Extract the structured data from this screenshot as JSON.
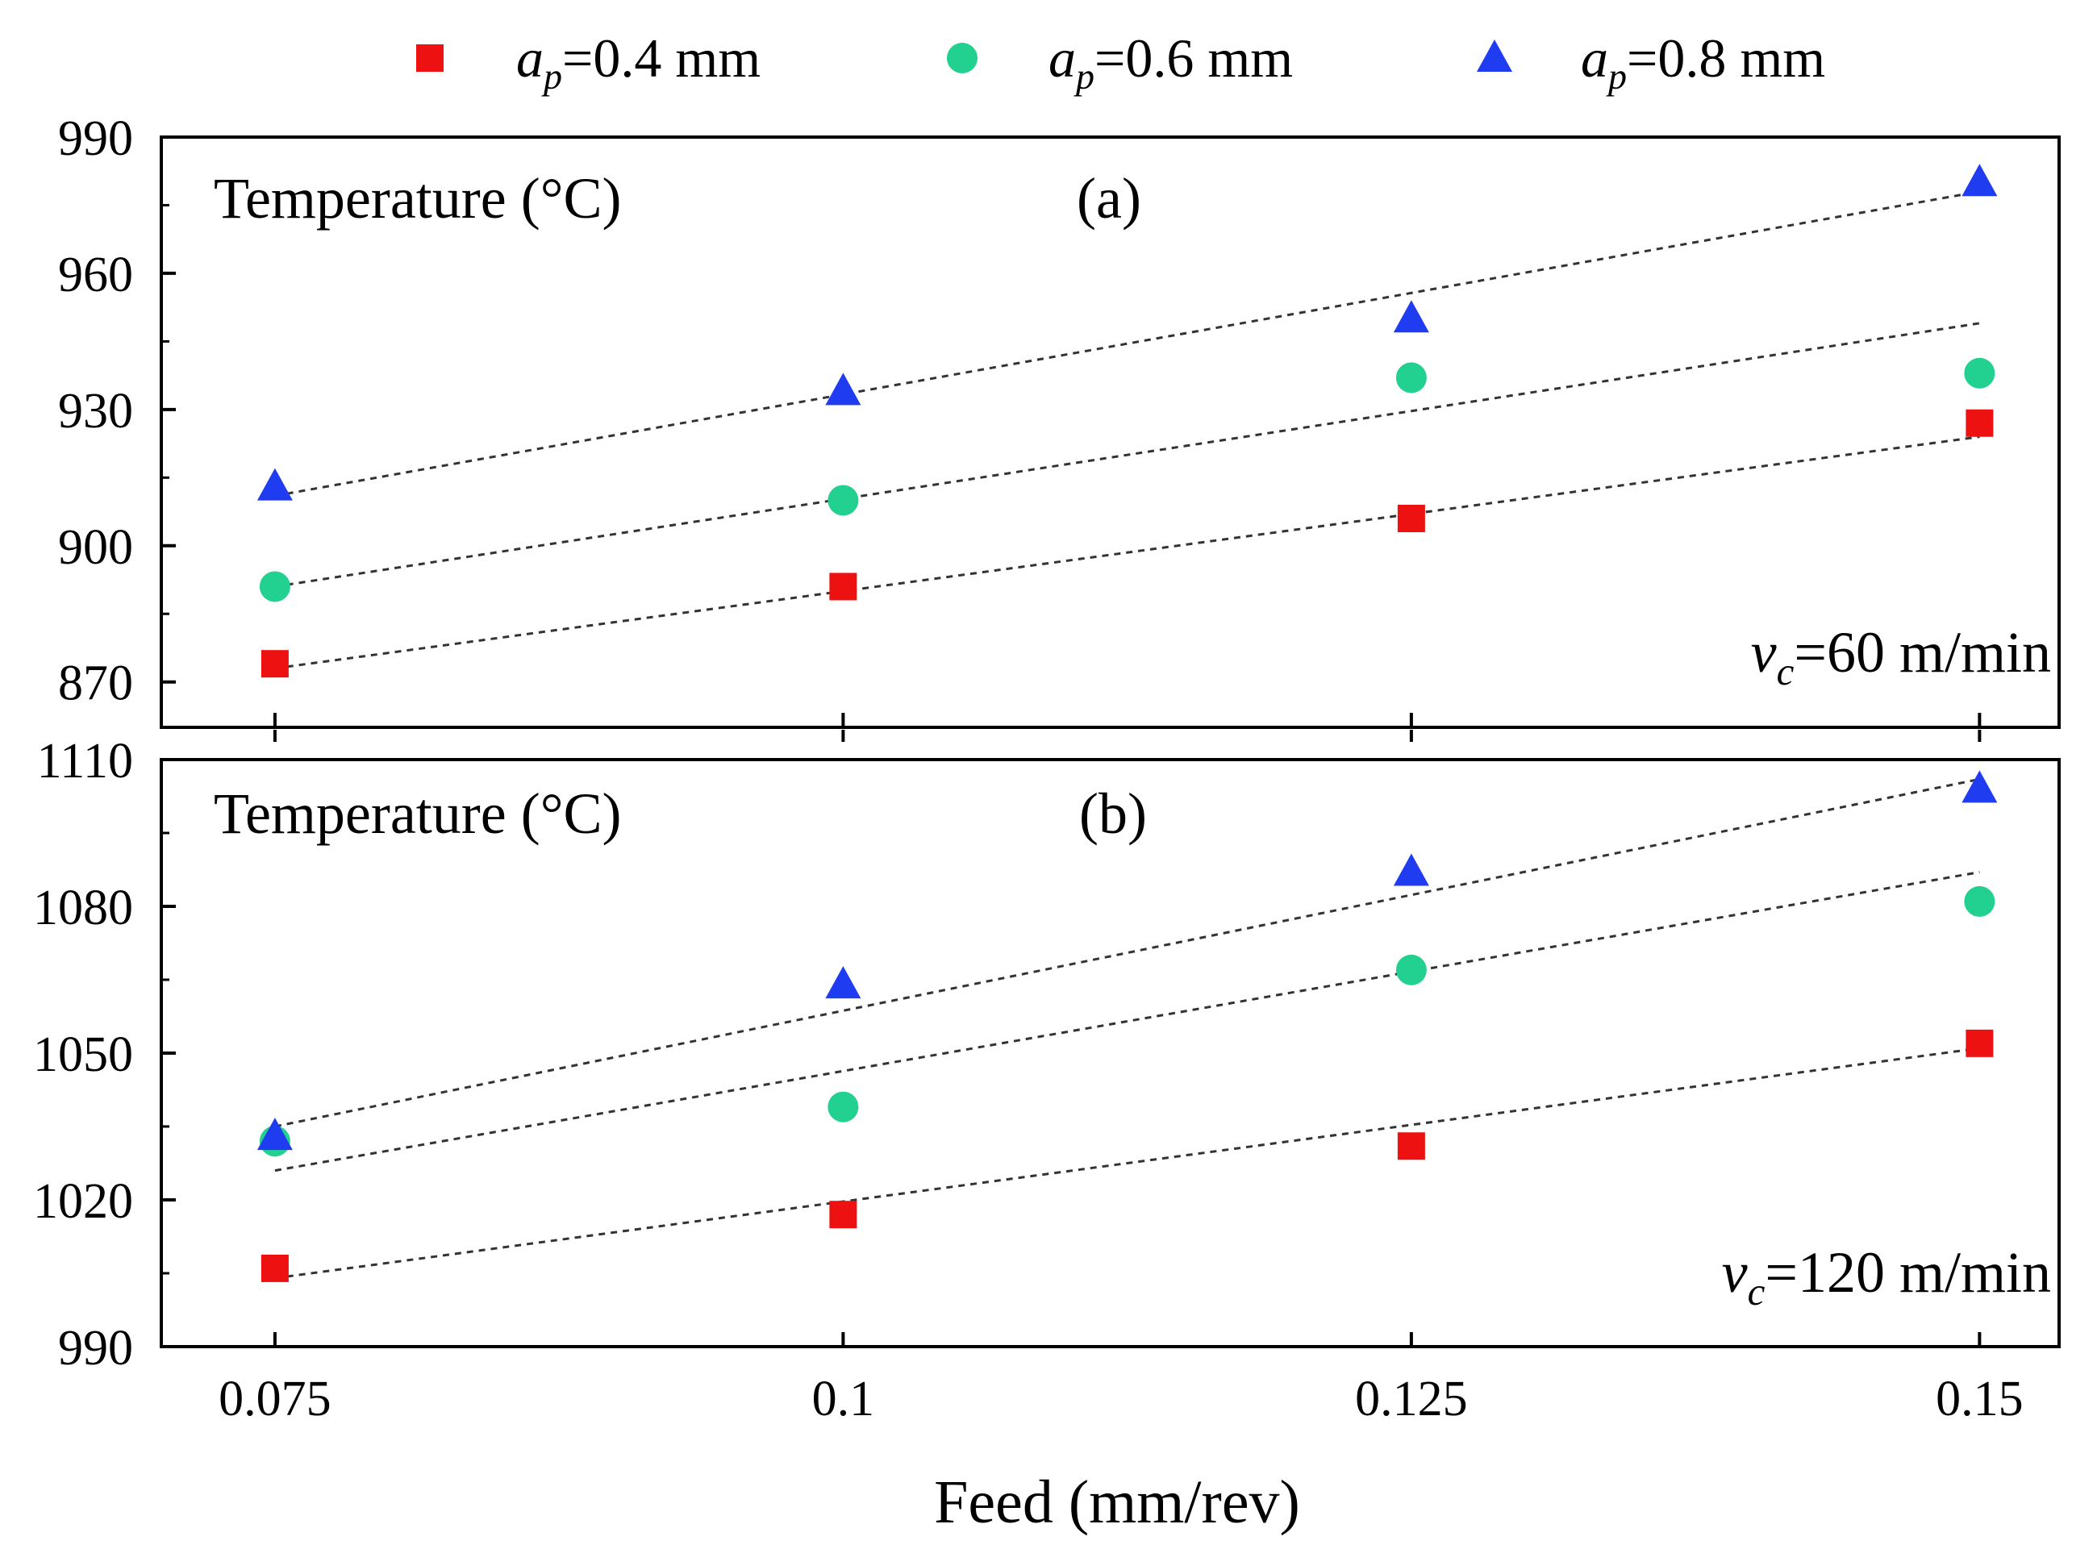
{
  "colors": {
    "series": [
      "#ee1111",
      "#22d08f",
      "#1f3cf0"
    ],
    "trend": "#333333",
    "axis": "#000000"
  },
  "legend": {
    "items": [
      {
        "var": "a",
        "sub": "p",
        "text": "=0.4 mm",
        "marker": "square"
      },
      {
        "var": "a",
        "sub": "p",
        "text": "=0.6 mm",
        "marker": "circle"
      },
      {
        "var": "a",
        "sub": "p",
        "text": "=0.8 mm",
        "marker": "triangle"
      }
    ]
  },
  "xlabel": "Feed (mm/rev)",
  "chart_data": [
    {
      "type": "scatter",
      "id": "a",
      "panel_label": "(a)",
      "ylabel_text": "Temperature (°C)",
      "condition": {
        "var": "v",
        "sub": "c",
        "text": "=60 m/min"
      },
      "x": [
        0.075,
        0.1,
        0.125,
        0.15
      ],
      "x_ticks": [
        0.075,
        0.1,
        0.125,
        0.15
      ],
      "x_tick_labels": [
        "0.075",
        "0.1",
        "0.125",
        "0.15"
      ],
      "xlim": [
        0.07,
        0.1535
      ],
      "ylim": [
        860,
        990
      ],
      "y_ticks": [
        870,
        900,
        930,
        960,
        990
      ],
      "y_tick_labels": [
        "870",
        "900",
        "930",
        "960",
        "990"
      ],
      "series": [
        {
          "name": "ap=0.4 mm",
          "values": [
            874,
            891,
            906,
            927
          ],
          "trend": [
            873,
            890,
            907,
            924
          ]
        },
        {
          "name": "ap=0.6 mm",
          "values": [
            891,
            910,
            937,
            938
          ],
          "trend": [
            891,
            910,
            929,
            949
          ]
        },
        {
          "name": "ap=0.8 mm",
          "values": [
            913,
            934,
            950,
            980
          ],
          "trend": [
            911,
            933,
            955,
            978
          ]
        }
      ]
    },
    {
      "type": "scatter",
      "id": "b",
      "panel_label": "(b)",
      "ylabel_text": "Temperature (°C)",
      "condition": {
        "var": "v",
        "sub": "c",
        "text": "=120 m/min"
      },
      "x": [
        0.075,
        0.1,
        0.125,
        0.15
      ],
      "x_ticks": [
        0.075,
        0.1,
        0.125,
        0.15
      ],
      "x_tick_labels": [
        "0.075",
        "0.1",
        "0.125",
        "0.15"
      ],
      "xlim": [
        0.07,
        0.1535
      ],
      "ylim": [
        990,
        1110
      ],
      "y_ticks": [
        990,
        1020,
        1050,
        1080,
        1110
      ],
      "y_tick_labels": [
        "990",
        "1020",
        "1050",
        "1080",
        "1110"
      ],
      "series": [
        {
          "name": "ap=0.4 mm",
          "values": [
            1006,
            1017,
            1031,
            1052
          ],
          "trend": [
            1004,
            1020,
            1035,
            1051
          ]
        },
        {
          "name": "ap=0.6 mm",
          "values": [
            1032,
            1039,
            1067,
            1081
          ],
          "trend": [
            1026,
            1046,
            1067,
            1087
          ]
        },
        {
          "name": "ap=0.8 mm",
          "values": [
            1033,
            1064,
            1087,
            1104
          ],
          "trend": [
            1035,
            1059,
            1082,
            1106
          ]
        }
      ]
    }
  ]
}
